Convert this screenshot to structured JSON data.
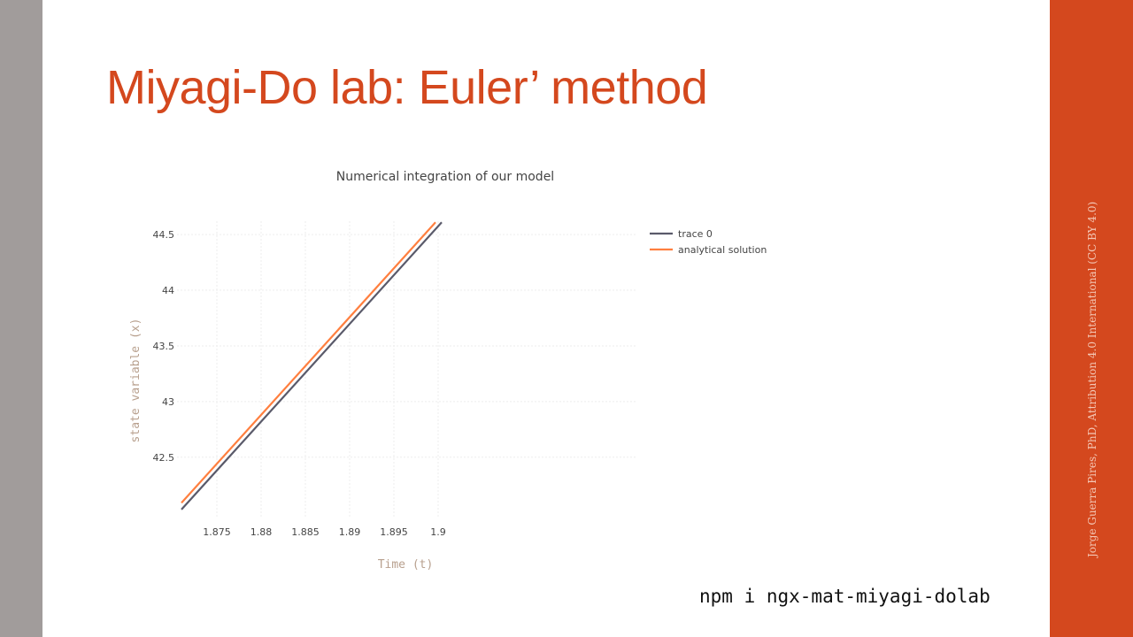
{
  "slide": {
    "title": "Miyagi-Do lab: Euler’ method",
    "credit": "Jorge Guerra Pires, PhD, Attribution 4.0 International (CC BY 4.0)",
    "command": "npm i ngx-mat-miyagi-dolab",
    "colors": {
      "accent": "#d4481e",
      "side_bar": "#a19c9b"
    }
  },
  "chart_data": {
    "type": "line",
    "title": "Numerical integration of our model",
    "xlabel": "Time (t)",
    "ylabel": "state variable (x)",
    "xlim": [
      1.8705,
      1.9225
    ],
    "ylim": [
      41.95,
      44.62
    ],
    "xticks": [
      "1.875",
      "1.88",
      "1.885",
      "1.89",
      "1.895",
      "1.9"
    ],
    "xtick_values": [
      1.875,
      1.88,
      1.885,
      1.89,
      1.895,
      1.9
    ],
    "yticks": [
      "42.5",
      "43",
      "43.5",
      "44",
      "44.5"
    ],
    "ytick_values": [
      42.5,
      43,
      43.5,
      44,
      44.5
    ],
    "grid": true,
    "legend_position": "right",
    "series": [
      {
        "name": "trace 0",
        "color": "#5a5a6a",
        "x": [
          1.871,
          1.9004
        ],
        "y": [
          42.03,
          44.61
        ]
      },
      {
        "name": "analytical solution",
        "color": "#ff7f3f",
        "x": [
          1.871,
          1.8997
        ],
        "y": [
          42.09,
          44.61
        ]
      }
    ]
  }
}
